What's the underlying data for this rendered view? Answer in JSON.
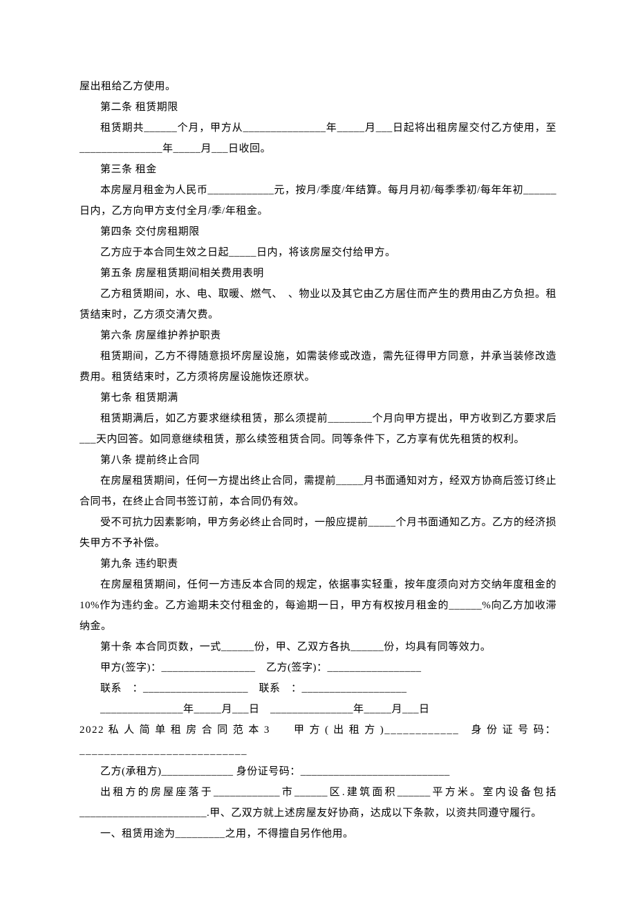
{
  "paragraphs": {
    "p1": "屋出租给乙方使用。",
    "s2_title": "第二条 租赁期限",
    "s2_body": "租赁期共______个月，甲方从_______________年_____月___日起将出租房屋交付乙方使用，至_______________年_____月___日收回。",
    "s3_title": "第三条 租金",
    "s3_body": "本房屋月租金为人民币____________元，按月/季度/年结算。每月月初/每季季初/每年年初______日内，乙方向甲方支付全月/季/年租金。",
    "s4_title": "第四条 交付房租期限",
    "s4_body": "乙方应于本合同生效之日起_____日内，将该房屋交付给甲方。",
    "s5_title": "第五条 房屋租赁期间相关费用表明",
    "s5_body": "乙方租赁期间，水、电、取暖、燃气、　、物业以及其它由乙方居住而产生的费用由乙方负担。租赁结束时，乙方须交清欠费。",
    "s6_title": "第六条 房屋维护养护职责",
    "s6_body": "租赁期间，乙方不得随意损坏房屋设施，如需装修或改造，需先征得甲方同意，并承当装修改造费用。租赁结束时，乙方须将房屋设施恢还原状。",
    "s7_title": "第七条 租赁期满",
    "s7_body": "租赁期满后，如乙方要求继续租赁，那么须提前________个月向甲方提出，甲方收到乙方要求后___天内回答。如同意继续租赁，那么续签租赁合同。同等条件下，乙方享有优先租赁的权利。",
    "s8_title": "第八条 提前终止合同",
    "s8_body1": "在房屋租赁期间，任何一方提出终止合同，需提前_____月书面通知对方，经双方协商后签订终止合同书，在终止合同书签订前，本合同仍有效。",
    "s8_body2": "受不可抗力因素影响，甲方务必终止合同时，一般应提前_____个月书面通知乙方。乙方的经济损失甲方不予补偿。",
    "s9_title": "第九条 违约职责",
    "s9_body": "在房屋租赁期间，任何一方违反本合同的规定，依据事实轻重，按年度须向对方交纳年度租金的10%作为违约金。乙方逾期未交付租金的，每逾期一日，甲方有权按月租金的______%向乙方加收滞纳金。",
    "s10_body": "第十条 本合同页数，一式______份，甲、乙双方各执______份，均具有同等效力。",
    "sig1": "甲方(签字)：_________________　乙方(签字)：_________________",
    "sig2": "联系　：___________________　联系　：___________________",
    "sig3": "_______________年_____月___日　_______________年_____月___日",
    "heading3": "2022 私 人 简 单 租 房 合 同 范 本 3　　甲 方 ( 出 租 方 )____________　身 份 证 号 码：___________________________",
    "yifang": "乙方(承租方)_____________ 身份证号码：___________________________",
    "house": "出租方的房屋座落于____________市______区.建筑面积______平方米。室内设备包括_______________________.甲、乙双方就上述房屋友好协商，达成以下条款，以资共同遵守履行。",
    "clause1": "一、租赁用途为_________之用，不得擅自另作他用。"
  }
}
